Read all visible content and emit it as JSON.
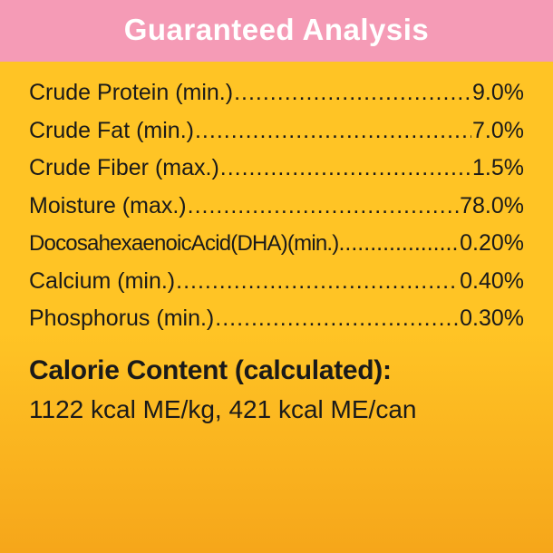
{
  "colors": {
    "header_bg": "#f59bb6",
    "body_bg_top": "#ffc425",
    "body_bg_bottom": "#f6a61a",
    "header_text": "#ffffff",
    "body_text": "#1a1a1a"
  },
  "typography": {
    "header_fontsize": 33,
    "row_fontsize": 25,
    "calorie_heading_fontsize": 30,
    "calorie_text_fontsize": 28
  },
  "header": {
    "title": "Guaranteed Analysis"
  },
  "nutrients": [
    {
      "label": "Crude Protein (min.)",
      "value": "9.0%",
      "tight": false
    },
    {
      "label": "Crude Fat (min.)",
      "value": "7.0%",
      "tight": false
    },
    {
      "label": "Crude Fiber (max.)",
      "value": "1.5%",
      "tight": false
    },
    {
      "label": "Moisture (max.)",
      "value": "78.0%",
      "tight": false
    },
    {
      "label": "DocosahexaenoicAcid(DHA)(min.)",
      "value": "0.20%",
      "tight": true
    },
    {
      "label": "Calcium (min.)",
      "value": "0.40%",
      "tight": false
    },
    {
      "label": "Phosphorus (min.)",
      "value": "0.30%",
      "tight": false
    }
  ],
  "calorie": {
    "heading": "Calorie Content (calculated):",
    "text": "1122 kcal ME/kg, 421 kcal ME/can"
  }
}
